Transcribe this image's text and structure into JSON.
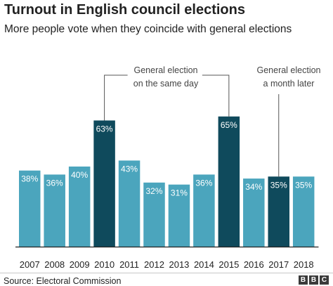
{
  "header": {
    "title": "Turnout in English council elections",
    "subtitle": "More people vote when they coincide with general elections"
  },
  "chart_data": {
    "type": "bar",
    "title": "Turnout in English council elections",
    "subtitle": "More people vote when they coincide with general elections",
    "xlabel": "",
    "ylabel": "",
    "ylim": [
      0,
      100
    ],
    "grid": false,
    "categories": [
      "2007",
      "2008",
      "2009",
      "2010",
      "2011",
      "2012",
      "2013",
      "2014",
      "2015",
      "2016",
      "2017",
      "2018"
    ],
    "values": [
      38,
      36,
      40,
      63,
      43,
      32,
      31,
      36,
      65,
      34,
      35,
      35
    ],
    "value_labels": [
      "38%",
      "36%",
      "40%",
      "63%",
      "43%",
      "32%",
      "31%",
      "36%",
      "65%",
      "34%",
      "35%",
      "35%"
    ],
    "highlighted": [
      "2010",
      "2015",
      "2017"
    ],
    "colors": {
      "default": "#4ba5bd",
      "highlight": "#0f4a5c",
      "label": "#ffffff",
      "axis": "#222222"
    },
    "annotations": [
      {
        "lines": [
          "General election",
          "on the same day"
        ],
        "targets": [
          "2010",
          "2015"
        ]
      },
      {
        "lines": [
          "General election",
          "a month later"
        ],
        "targets": [
          "2017"
        ]
      }
    ]
  },
  "footer": {
    "source": "Source: Electoral Commission",
    "logo": [
      "B",
      "B",
      "C"
    ]
  }
}
